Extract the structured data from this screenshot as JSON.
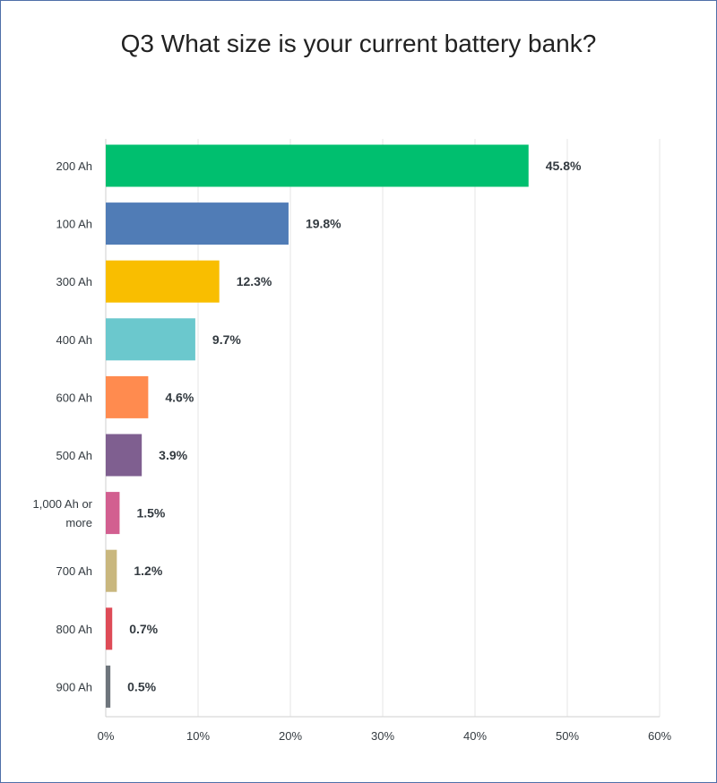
{
  "chart_data": {
    "type": "bar",
    "orientation": "horizontal",
    "title": "Q3 What size is your current battery bank?",
    "categories": [
      "200 Ah",
      "100 Ah",
      "300 Ah",
      "400 Ah",
      "600 Ah",
      "500 Ah",
      "1,000 Ah or more",
      "700 Ah",
      "800 Ah",
      "900 Ah"
    ],
    "category_lines": [
      [
        "200 Ah"
      ],
      [
        "100 Ah"
      ],
      [
        "300 Ah"
      ],
      [
        "400 Ah"
      ],
      [
        "600 Ah"
      ],
      [
        "500 Ah"
      ],
      [
        "1,000 Ah or",
        "more"
      ],
      [
        "700 Ah"
      ],
      [
        "800 Ah"
      ],
      [
        "900 Ah"
      ]
    ],
    "values": [
      45.8,
      19.8,
      12.3,
      9.7,
      4.6,
      3.9,
      1.5,
      1.2,
      0.7,
      0.5
    ],
    "value_labels": [
      "45.8%",
      "19.8%",
      "12.3%",
      "9.7%",
      "4.6%",
      "3.9%",
      "1.5%",
      "1.2%",
      "0.7%",
      "0.5%"
    ],
    "colors": [
      "#00bf6f",
      "#507cb6",
      "#f9be00",
      "#6bc8cd",
      "#ff8b4f",
      "#7f5f90",
      "#d25f90",
      "#c9b77e",
      "#de4b57",
      "#6e757c"
    ],
    "xlim": [
      0,
      60
    ],
    "x_ticks": [
      "0%",
      "10%",
      "20%",
      "30%",
      "40%",
      "50%",
      "60%"
    ],
    "x_tick_values": [
      0,
      10,
      20,
      30,
      40,
      50,
      60
    ],
    "grid": true,
    "xlabel": "",
    "ylabel": ""
  }
}
